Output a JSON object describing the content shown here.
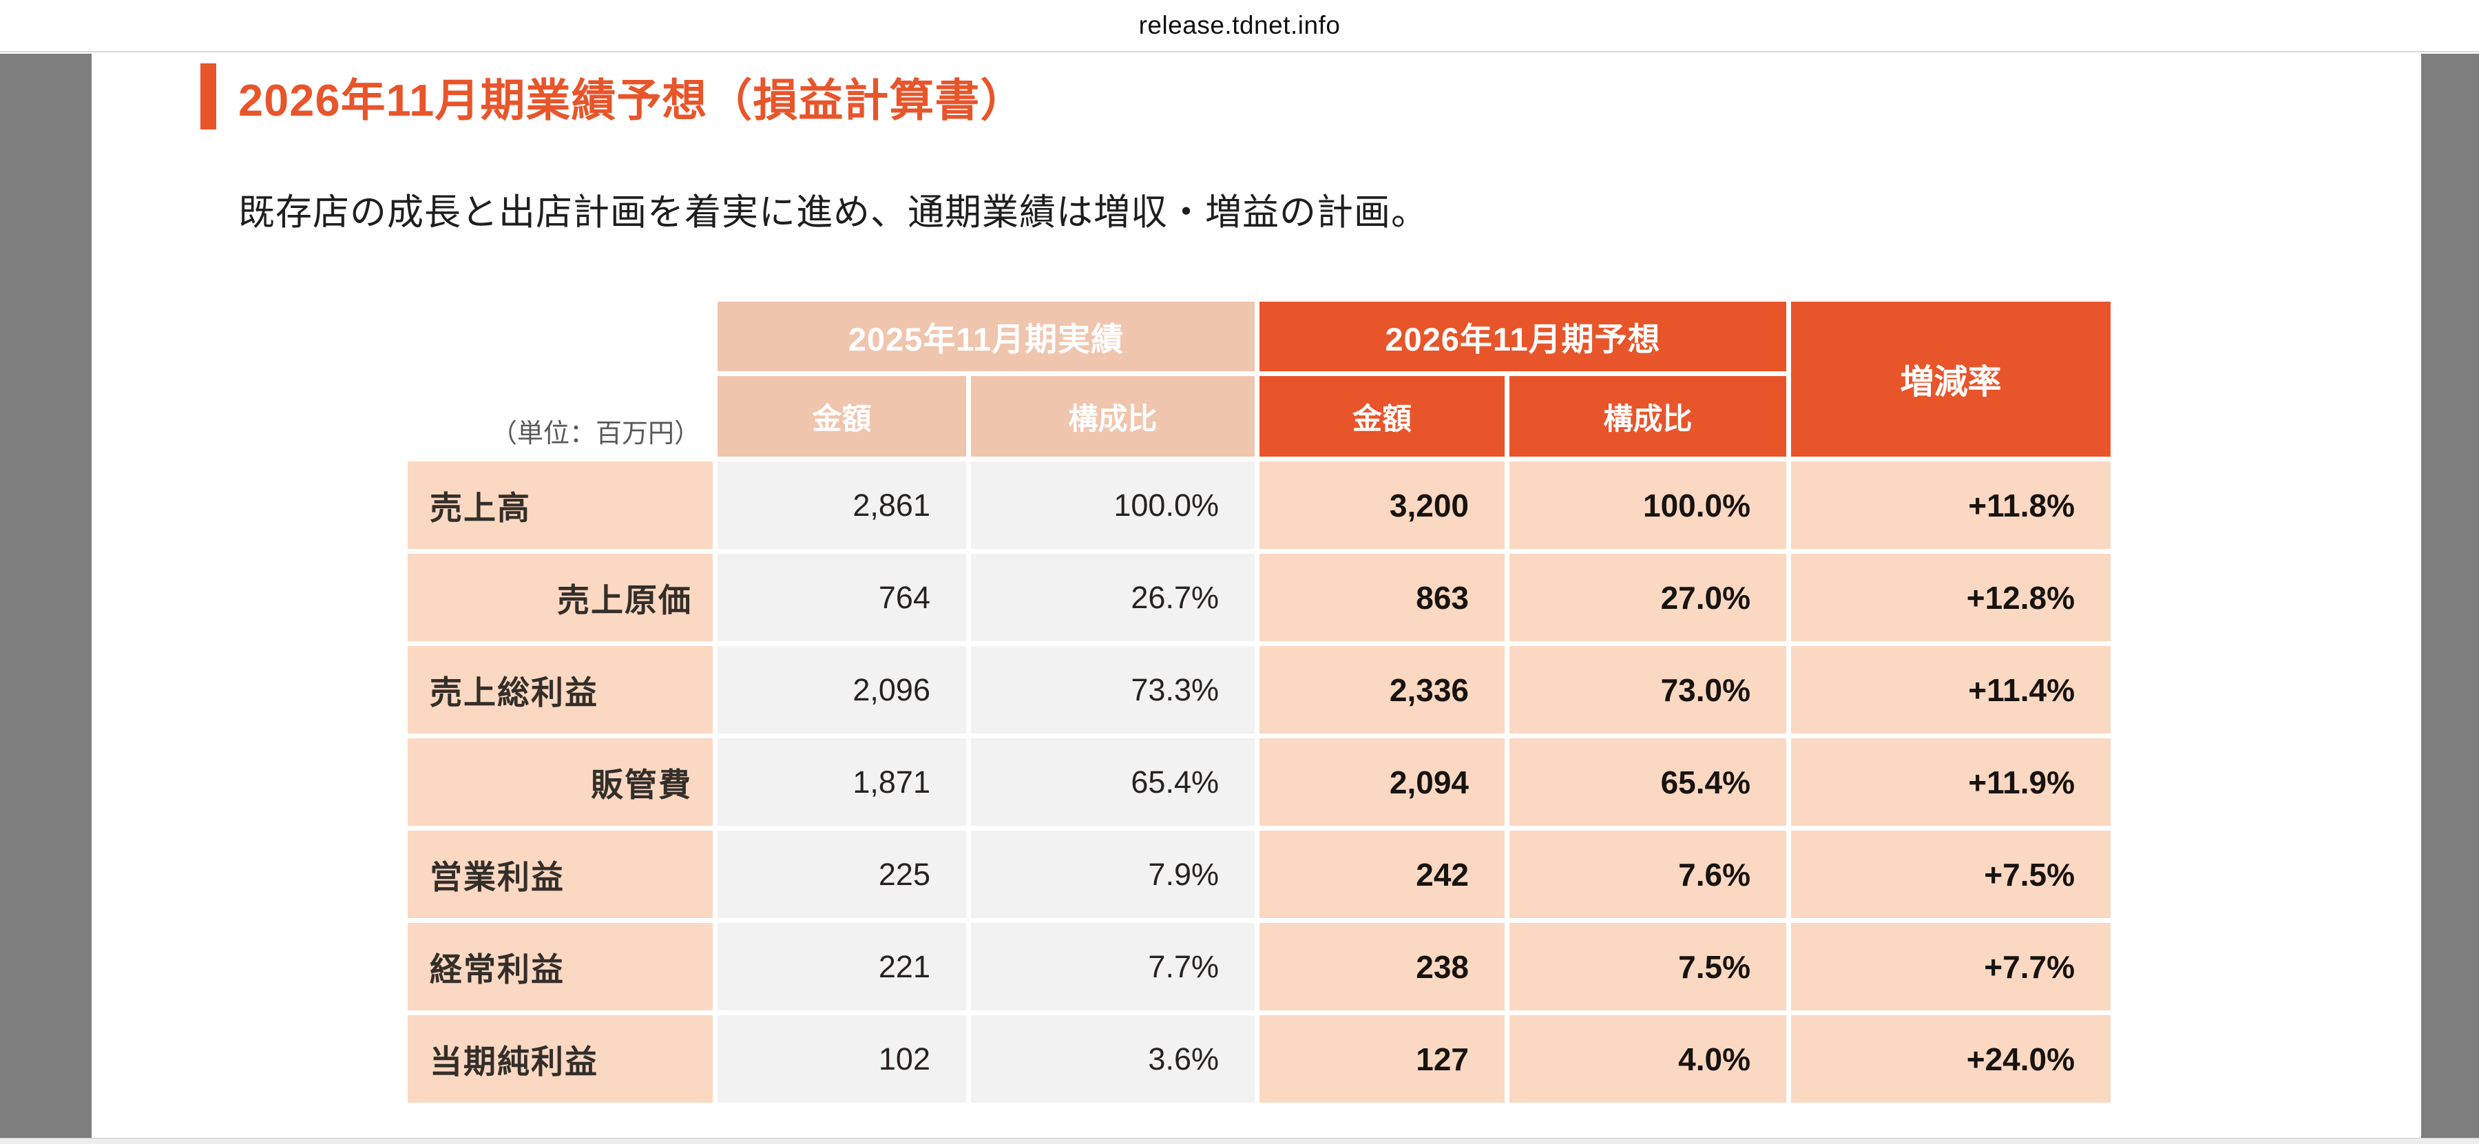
{
  "browser": {
    "url_text": "release.tdnet.info"
  },
  "document": {
    "title": "2026年11月期業績予想（損益計算書）",
    "subtitle": "既存店の成長と出店計画を着実に進め、通期業績は増収・増益の計画。"
  },
  "table": {
    "unit_note": "（単位：百万円）",
    "group_2025": "2025年11月期実績",
    "group_2026": "2026年11月期予想",
    "change_header": "増減率",
    "subheaders": [
      "金額",
      "構成比",
      "金額",
      "構成比"
    ],
    "rows": [
      {
        "label": "売上高",
        "indent": false,
        "actual_amount": "2,861",
        "actual_ratio": "100.0%",
        "forecast_amount": "3,200",
        "forecast_ratio": "100.0%",
        "change": "+11.8%"
      },
      {
        "label": "売上原価",
        "indent": true,
        "actual_amount": "764",
        "actual_ratio": "26.7%",
        "forecast_amount": "863",
        "forecast_ratio": "27.0%",
        "change": "+12.8%"
      },
      {
        "label": "売上総利益",
        "indent": false,
        "actual_amount": "2,096",
        "actual_ratio": "73.3%",
        "forecast_amount": "2,336",
        "forecast_ratio": "73.0%",
        "change": "+11.4%"
      },
      {
        "label": "販管費",
        "indent": true,
        "actual_amount": "1,871",
        "actual_ratio": "65.4%",
        "forecast_amount": "2,094",
        "forecast_ratio": "65.4%",
        "change": "+11.9%"
      },
      {
        "label": "営業利益",
        "indent": false,
        "actual_amount": "225",
        "actual_ratio": "7.9%",
        "forecast_amount": "242",
        "forecast_ratio": "7.6%",
        "change": "+7.5%"
      },
      {
        "label": "経常利益",
        "indent": false,
        "actual_amount": "221",
        "actual_ratio": "7.7%",
        "forecast_amount": "238",
        "forecast_ratio": "7.5%",
        "change": "+7.7%"
      },
      {
        "label": "当期純利益",
        "indent": false,
        "actual_amount": "102",
        "actual_ratio": "3.6%",
        "forecast_amount": "127",
        "forecast_ratio": "4.0%",
        "change": "+24.0%"
      }
    ]
  },
  "colors": {
    "accent_orange": "#e8552b",
    "header_salmon": "#f0c5ad",
    "cell_peach": "#fbd8c2",
    "cell_gray": "#f2f2f2",
    "gutter_gray": "#7d7d7d"
  }
}
